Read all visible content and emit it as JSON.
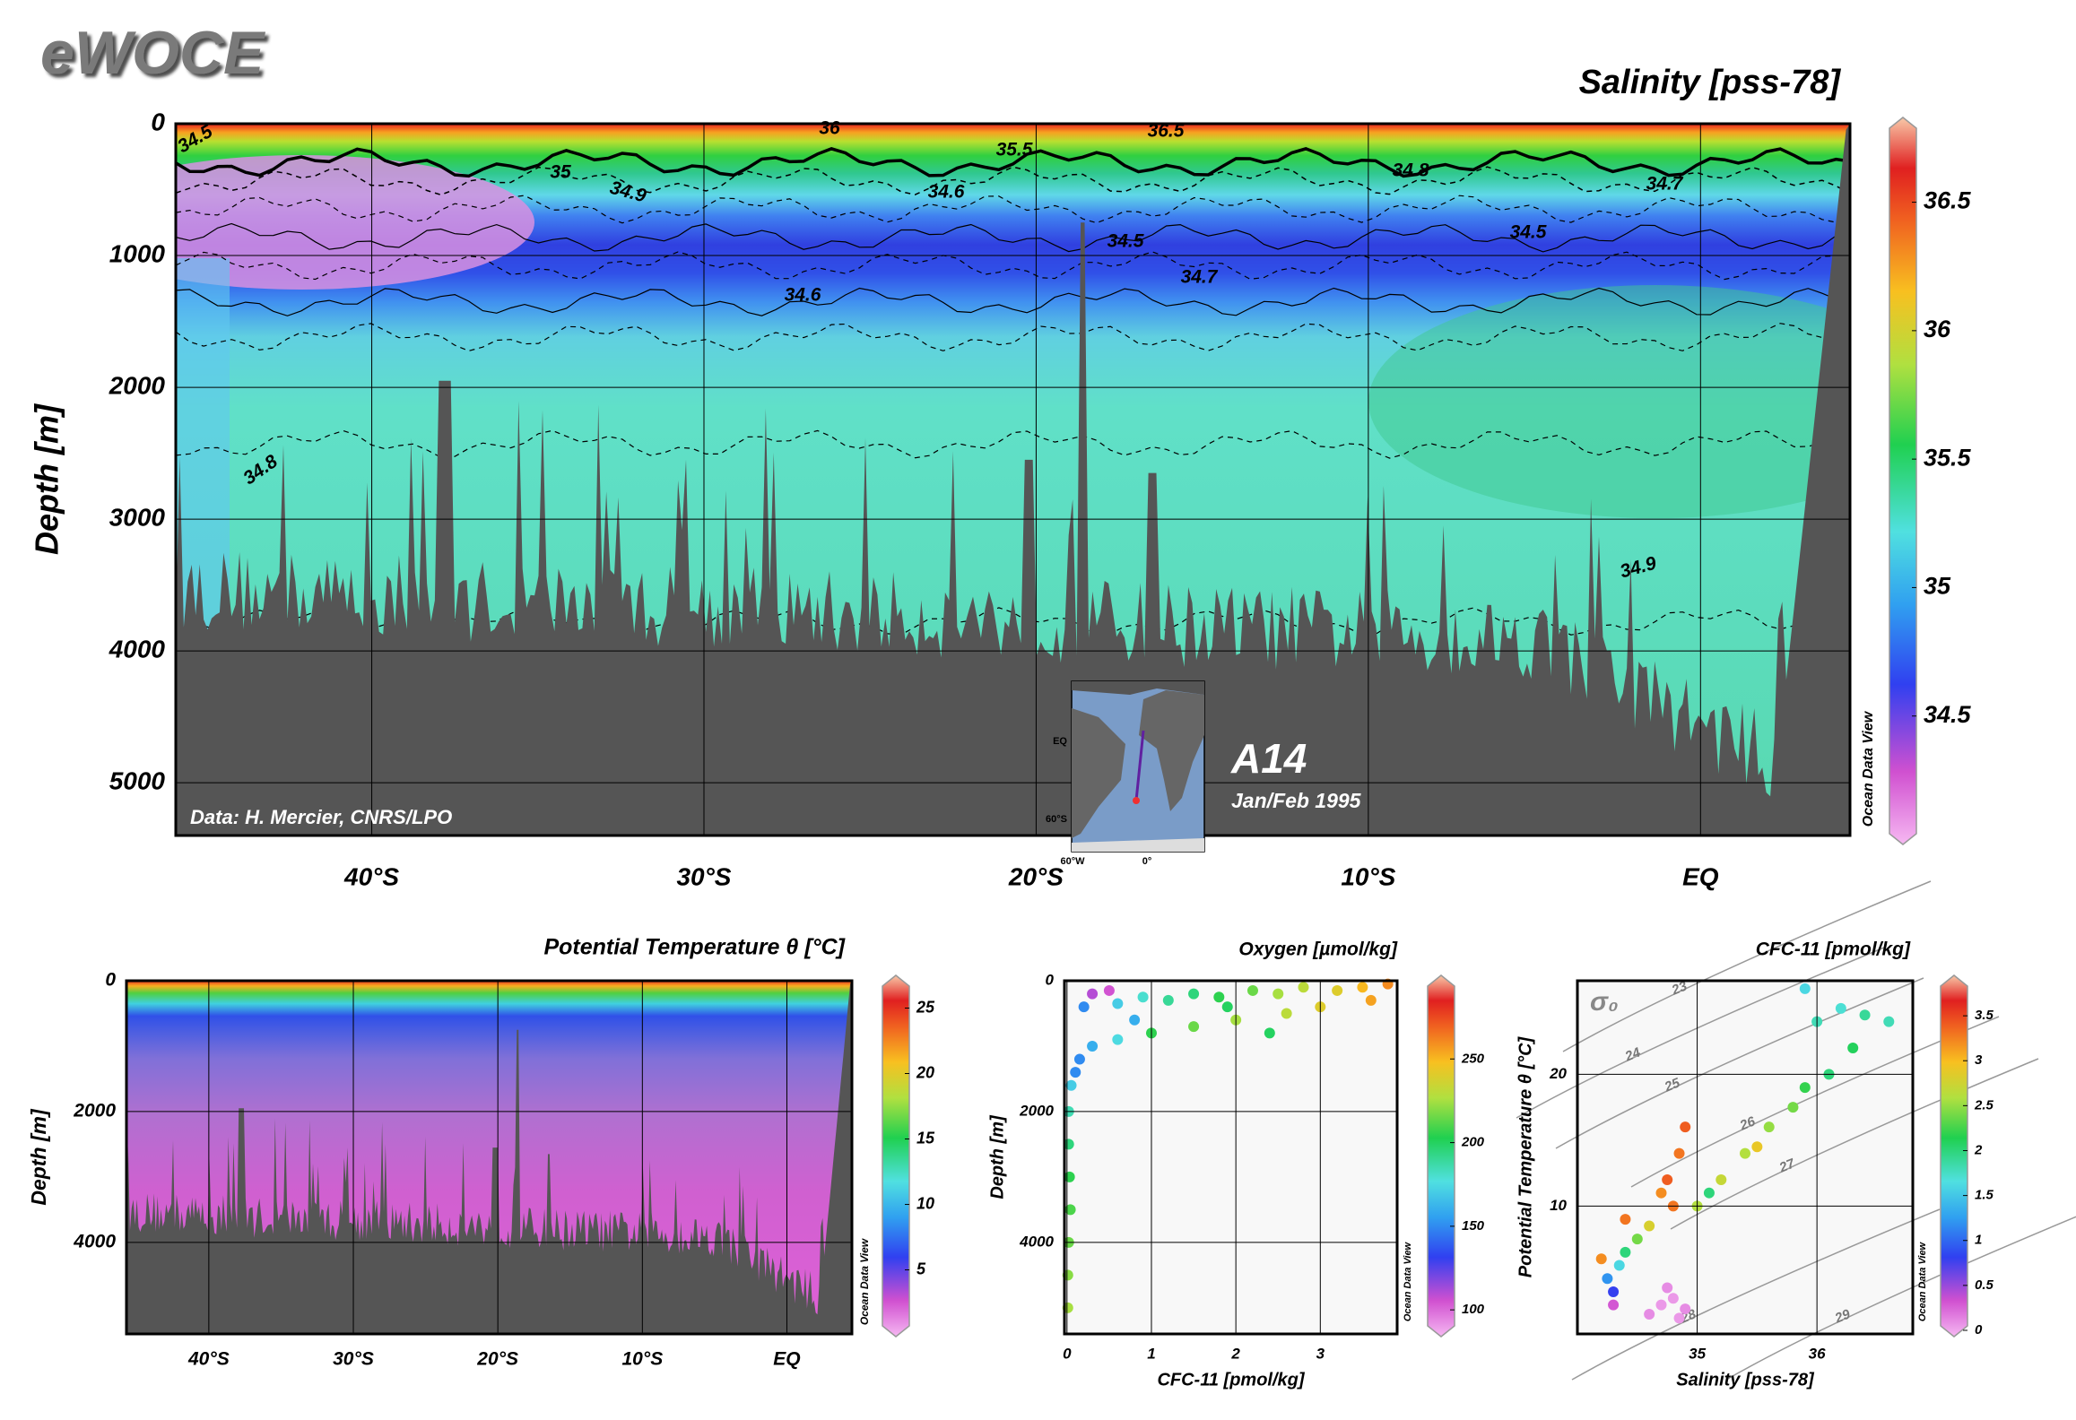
{
  "header": {
    "logo": "eWOCE"
  },
  "chart_data": [
    {
      "type": "section",
      "title": "Salinity [pss-78]",
      "y_label": "Depth [m]",
      "xlim": [
        -45.9,
        4.5
      ],
      "xticks": [
        {
          "value": -40,
          "label": "40°S"
        },
        {
          "value": -30,
          "label": "30°S"
        },
        {
          "value": -20,
          "label": "20°S"
        },
        {
          "value": -10,
          "label": "10°S"
        },
        {
          "value": 0,
          "label": "EQ"
        }
      ],
      "ylim": [
        0,
        5400
      ],
      "yticks": [
        0,
        1000,
        2000,
        3000,
        4000,
        5000
      ],
      "y_inverted": true,
      "grid": true,
      "colorbar": {
        "lim": [
          34.0,
          36.83
        ],
        "ticks": [
          34.5,
          35,
          35.5,
          36,
          36.5
        ]
      },
      "contour_labels": [
        "34.5",
        "36",
        "36.5",
        "35.5",
        "35",
        "34.9",
        "34.6",
        "34.8",
        "34.7",
        "34.5",
        "34.5",
        "34.7",
        "34.6",
        "34.8",
        "34.9"
      ],
      "annotations": [
        "Data: H. Mercier, CNRS/LPO",
        "A14",
        "Jan/Feb 1995"
      ],
      "inset_labels": [
        "EQ",
        "60°S",
        "60°W",
        "0°"
      ],
      "watermark": "Ocean Data View"
    },
    {
      "type": "section",
      "title": "Potential Temperature θ [°C]",
      "y_label": "Depth [m]",
      "xlim": [
        -45.7,
        4.5
      ],
      "xticks": [
        {
          "value": -40,
          "label": "40°S"
        },
        {
          "value": -30,
          "label": "30°S"
        },
        {
          "value": -20,
          "label": "20°S"
        },
        {
          "value": -10,
          "label": "10°S"
        },
        {
          "value": 0,
          "label": "EQ"
        }
      ],
      "ylim": [
        0,
        5400
      ],
      "yticks": [
        0,
        2000,
        4000
      ],
      "y_inverted": true,
      "grid": true,
      "colorbar": {
        "lim": [
          -0.1,
          27.5
        ],
        "ticks": [
          5,
          10,
          15,
          20,
          25
        ]
      },
      "watermark": "Ocean Data View"
    },
    {
      "type": "scatter",
      "title": "Oxygen [µmol/kg]",
      "x_label": "CFC-11 [pmol/kg]",
      "y_label": "Depth [m]",
      "xlim": [
        -0.03,
        3.91
      ],
      "xticks": [
        0,
        1,
        2,
        3
      ],
      "ylim": [
        0,
        5400
      ],
      "yticks": [
        0,
        2000,
        4000
      ],
      "y_inverted": true,
      "grid": true,
      "x": [
        3.8,
        3.5,
        3.2,
        2.8,
        2.5,
        2.2,
        1.8,
        1.5,
        1.2,
        0.9,
        0.6,
        0.3,
        0.5,
        0.2,
        2.6,
        2.0,
        1.5,
        1.0,
        0.6,
        0.3,
        0.15,
        0.1,
        0.05,
        0.02,
        0.02,
        0.03,
        0.04,
        0.02,
        0.01,
        0.01,
        3.0,
        3.6,
        1.9,
        0.8,
        2.4
      ],
      "values": [
        50,
        100,
        150,
        100,
        200,
        150,
        250,
        200,
        300,
        250,
        350,
        200,
        150,
        400,
        500,
        600,
        700,
        800,
        900,
        1000,
        1200,
        1400,
        1600,
        2000,
        2500,
        3000,
        3500,
        4000,
        4500,
        5000,
        400,
        300,
        400,
        600,
        800
      ],
      "color_values": [
        260,
        250,
        240,
        230,
        225,
        215,
        205,
        195,
        190,
        180,
        170,
        110,
        105,
        150,
        230,
        225,
        215,
        205,
        175,
        160,
        150,
        150,
        170,
        185,
        195,
        205,
        210,
        215,
        220,
        225,
        240,
        255,
        200,
        160,
        200
      ],
      "colorbar": {
        "lim": [
          84,
          300
        ],
        "ticks": [
          100,
          150,
          200,
          250
        ]
      },
      "watermark": "Ocean Data View"
    },
    {
      "type": "scatter",
      "title": "CFC-11 [pmol/kg]",
      "x_label": "Salinity [pss-78]",
      "y_label": "Potential Temperature θ [°C]",
      "xlim": [
        34.0,
        36.8
      ],
      "xticks": [
        35,
        36
      ],
      "ylim": [
        0.3,
        27.1
      ],
      "yticks": [
        10,
        20
      ],
      "grid": true,
      "x": [
        34.3,
        34.3,
        34.25,
        34.35,
        34.4,
        34.5,
        34.6,
        34.2,
        34.4,
        34.7,
        34.8,
        34.9,
        34.75,
        34.85,
        34.6,
        34.8,
        34.75,
        34.85,
        34.9,
        34.7,
        35.0,
        35.2,
        35.4,
        35.6,
        35.8,
        35.5,
        35.1,
        35.9,
        36.1,
        36.0,
        36.2,
        36.4,
        36.6,
        36.3,
        35.9
      ],
      "values": [
        2.5,
        3.5,
        4.5,
        5.5,
        6.5,
        7.5,
        8.5,
        6,
        9,
        2.5,
        3,
        2.2,
        3.8,
        1.5,
        1.8,
        10,
        12,
        14,
        16,
        11,
        10,
        12,
        14,
        16,
        17.5,
        14.5,
        11,
        19,
        20,
        24,
        25,
        24.5,
        24,
        22,
        26.5
      ],
      "color_values": [
        0.3,
        0.8,
        1.2,
        1.6,
        2.0,
        2.4,
        2.8,
        3.2,
        3.3,
        0.05,
        0.05,
        0.1,
        0.1,
        0.05,
        0.1,
        3.3,
        3.4,
        3.3,
        3.4,
        3.2,
        2.6,
        2.7,
        2.6,
        2.5,
        2.4,
        2.9,
        2.0,
        2.2,
        2.0,
        1.8,
        1.7,
        1.9,
        1.8,
        2.1,
        1.6
      ],
      "colorbar": {
        "lim": [
          -0.07,
          3.95
        ],
        "ticks": [
          0,
          0.5,
          1,
          1.5,
          2,
          2.5,
          3,
          3.5
        ]
      },
      "isopycnal_symbol": "σ₀",
      "isopycnal_labels": [
        "23",
        "24",
        "25",
        "26",
        "27",
        "28",
        "29"
      ],
      "watermark": "Ocean Data View"
    }
  ]
}
